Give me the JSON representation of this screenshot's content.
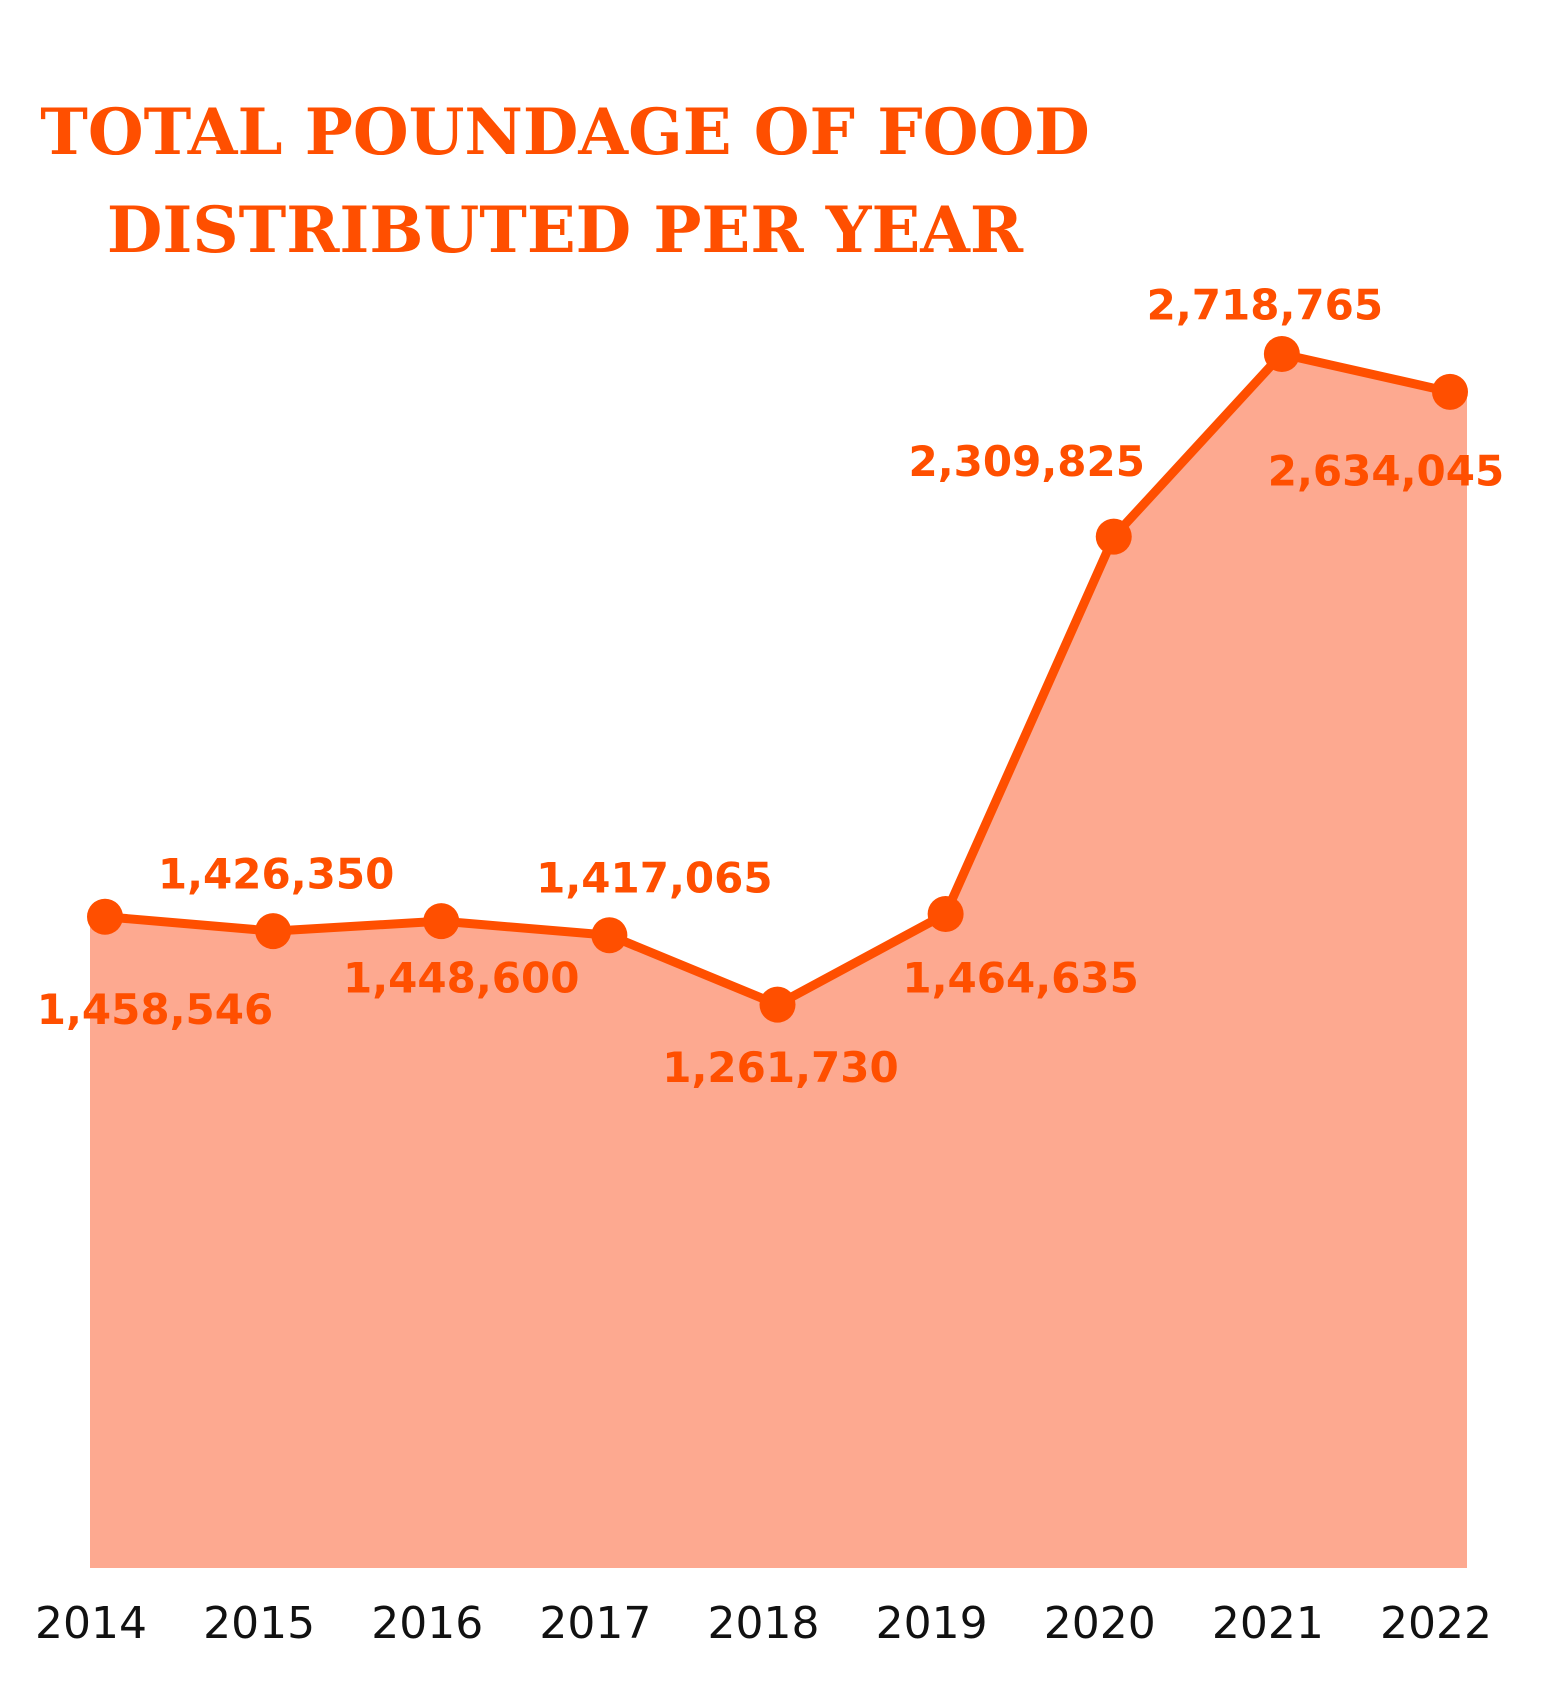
{
  "chart_data": {
    "type": "area",
    "title_lines": [
      "TOTAL POUNDAGE OF FOOD",
      "DISTRIBUTED PER YEAR"
    ],
    "categories": [
      "2014",
      "2015",
      "2016",
      "2017",
      "2018",
      "2019",
      "2020",
      "2021",
      "2022"
    ],
    "values": [
      1458546,
      1426350,
      1448600,
      1417065,
      1261730,
      1464635,
      2309825,
      2718765,
      2634045
    ],
    "data_labels": [
      "1,458,546",
      "1,426,350",
      "1,448,600",
      "1,417,065",
      "1,261,730",
      "1,464,635",
      "2,309,825",
      "2,718,765",
      "2,634,045"
    ],
    "ylim": [
      0,
      2718765
    ],
    "grid": false,
    "legend": "none",
    "colors": {
      "line": "#FF4F00",
      "area": "#FDA990",
      "tick_text": "#111111"
    }
  }
}
